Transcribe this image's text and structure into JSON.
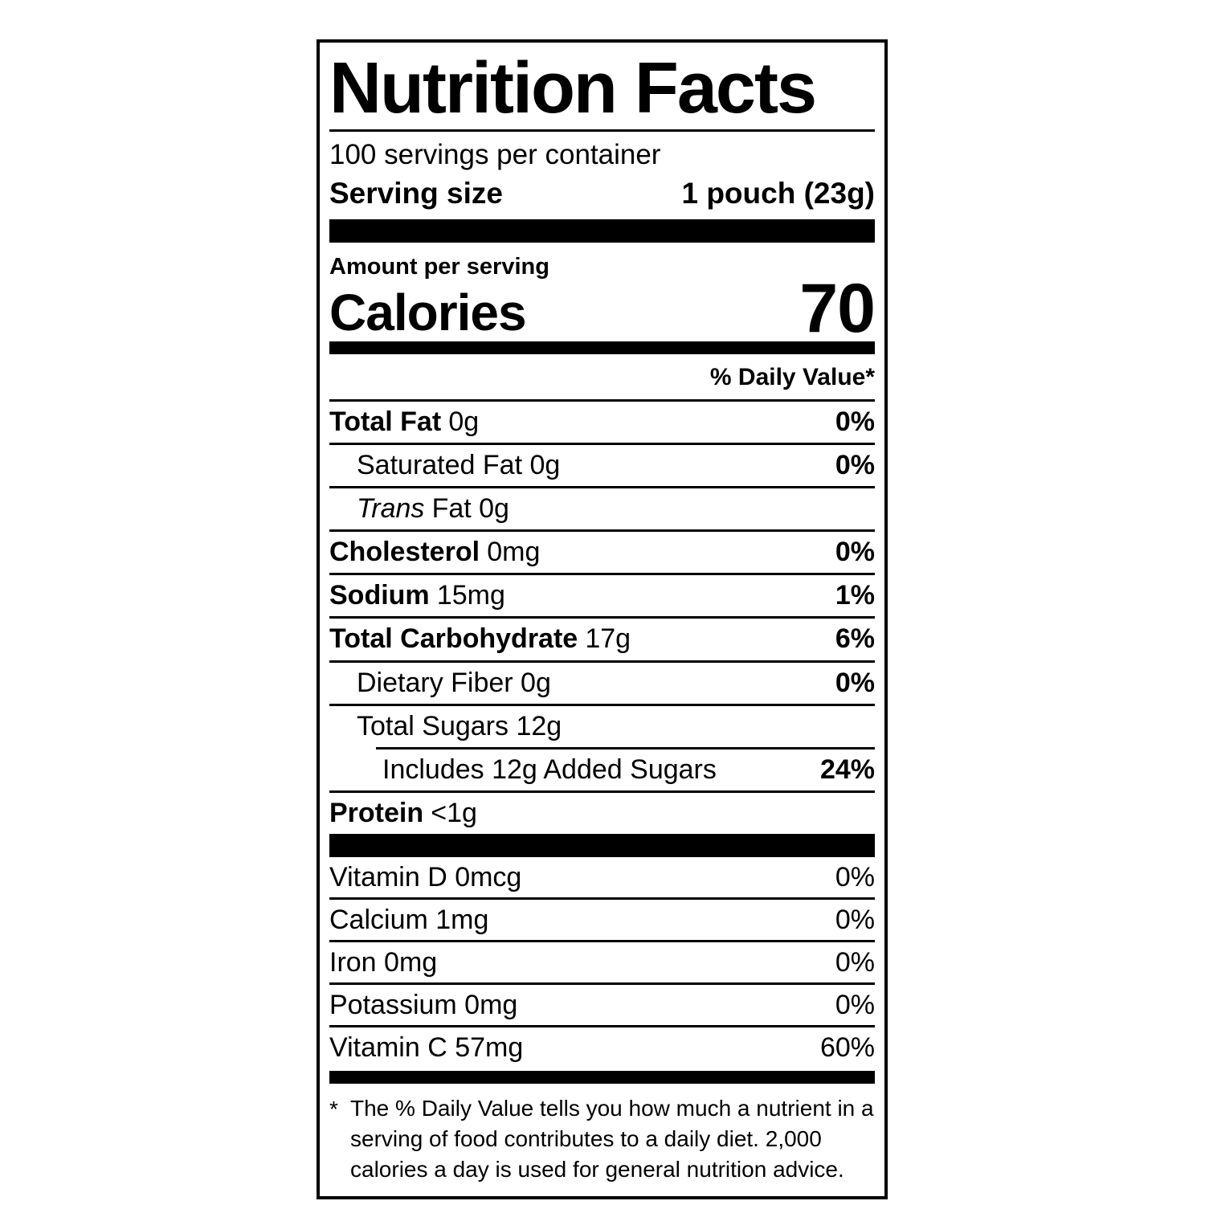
{
  "label": {
    "title": "Nutrition Facts",
    "servings_per_container": "100 servings per container",
    "serving_size": {
      "label": "Serving size",
      "value": "1 pouch (23g)"
    },
    "amount_per_serving": "Amount per serving",
    "calories": {
      "label": "Calories",
      "value": "70"
    },
    "daily_value_header": "% Daily Value*",
    "nutrients": {
      "total_fat": {
        "name": "Total Fat",
        "amount": "0g",
        "dv": "0%"
      },
      "saturated_fat": {
        "name": "Saturated Fat 0g",
        "dv": "0%"
      },
      "trans_fat": {
        "name_italic": "Trans",
        "name_rest": "Fat 0g"
      },
      "cholesterol": {
        "name": "Cholesterol",
        "amount": "0mg",
        "dv": "0%"
      },
      "sodium": {
        "name": "Sodium",
        "amount": "15mg",
        "dv": "1%"
      },
      "total_carbohydrate": {
        "name": "Total Carbohydrate",
        "amount": "17g",
        "dv": "6%"
      },
      "dietary_fiber": {
        "name": "Dietary Fiber 0g",
        "dv": "0%"
      },
      "total_sugars": {
        "name": "Total Sugars 12g"
      },
      "added_sugars": {
        "name": "Includes 12g Added Sugars",
        "dv": "24%"
      },
      "protein": {
        "name": "Protein",
        "amount": "<1g"
      }
    },
    "vitamins": {
      "vitamin_d": {
        "name": "Vitamin D 0mcg",
        "dv": "0%"
      },
      "calcium": {
        "name": "Calcium 1mg",
        "dv": "0%"
      },
      "iron": {
        "name": "Iron 0mg",
        "dv": "0%"
      },
      "potassium": {
        "name": "Potassium 0mg",
        "dv": "0%"
      },
      "vitamin_c": {
        "name": "Vitamin C 57mg",
        "dv": "60%"
      }
    },
    "footnote": {
      "marker": "*",
      "text": "The % Daily Value tells you how much a nutrient in a serving of food contributes to a daily diet. 2,000 calories a day is used for general nutrition advice."
    },
    "colors": {
      "ink": "#000000",
      "background": "#ffffff"
    }
  }
}
